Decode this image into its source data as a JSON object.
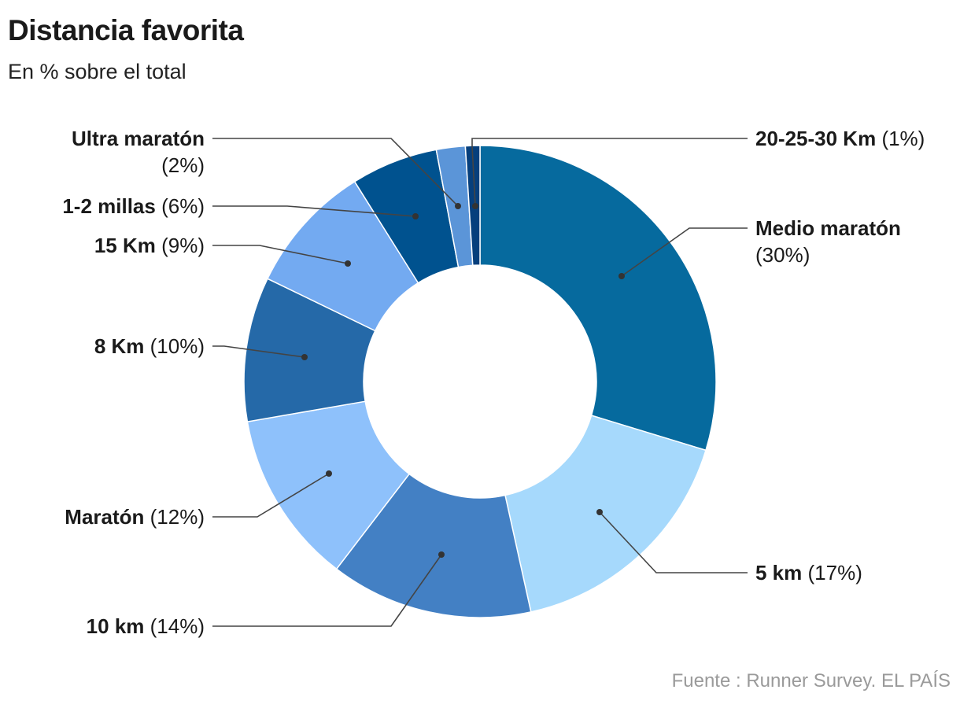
{
  "title": "Distancia favorita",
  "subtitle": "En % sobre el total",
  "source": "Fuente : Runner Survey. EL PAÍS",
  "chart_data": {
    "type": "pie",
    "donut": true,
    "title": "Distancia favorita",
    "subtitle": "En % sobre el total",
    "unit": "%",
    "slices": [
      {
        "label": "Medio maratón",
        "value": 30,
        "value_label": "(30%)",
        "color": "#066a9e"
      },
      {
        "label": "5 km",
        "value": 17,
        "value_label": "(17%)",
        "color": "#a6d9fc"
      },
      {
        "label": "10 km",
        "value": 14,
        "value_label": "(14%)",
        "color": "#4380c4"
      },
      {
        "label": "Maratón",
        "value": 12,
        "value_label": "(12%)",
        "color": "#8ec1fb"
      },
      {
        "label": "8 Km",
        "value": 10,
        "value_label": "(10%)",
        "color": "#2569a8"
      },
      {
        "label": "15 Km",
        "value": 9,
        "value_label": "(9%)",
        "color": "#73aaf1"
      },
      {
        "label": "1-2 millas",
        "value": 6,
        "value_label": "(6%)",
        "color": "#00528f"
      },
      {
        "label": "Ultra maratón",
        "value": 2,
        "value_label": "(2%)",
        "color": "#5b95d8"
      },
      {
        "label": "20-25-30 Km",
        "value": 1,
        "value_label": "(1%)",
        "color": "#063f7c"
      }
    ]
  }
}
